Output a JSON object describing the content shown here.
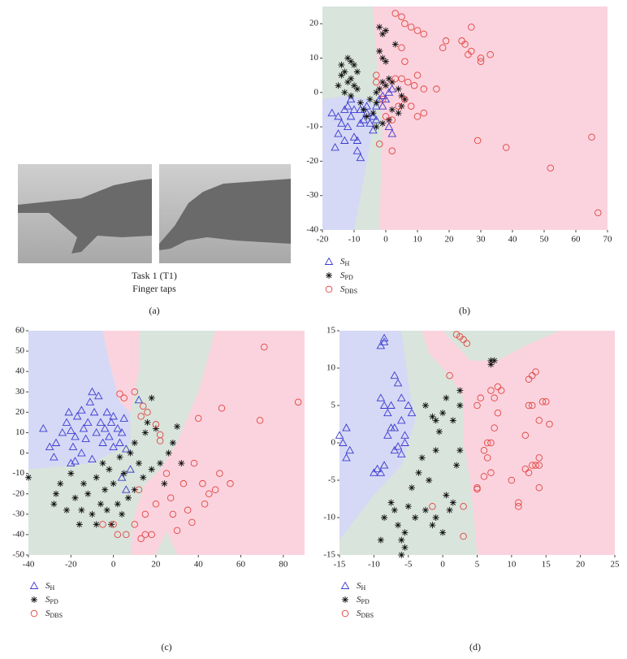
{
  "photo": {
    "caption": [
      "Task 1 (T1)",
      "Finger taps"
    ],
    "panel_label": "(a)"
  },
  "chart_data": [
    {
      "type": "scatter",
      "panel_label": "(b)",
      "xlim": [
        -20,
        70
      ],
      "xticks": [
        -20,
        -10,
        0,
        10,
        20,
        30,
        40,
        50,
        60,
        70
      ],
      "ylim": [
        -40,
        25
      ],
      "yticks": [
        -40,
        -30,
        -20,
        -10,
        0,
        10,
        20
      ],
      "series": [
        {
          "name": "SH",
          "color": "#3a3ad0",
          "marker": "triangle",
          "x": [
            -17,
            -15,
            -14,
            -15,
            -16,
            -13,
            -12,
            -11,
            -10,
            -9,
            -10,
            -8,
            -7,
            -6,
            -5,
            -4,
            -3,
            -2,
            -1,
            0,
            1,
            2,
            -12,
            -13,
            -8,
            -6,
            -11,
            -9,
            -8,
            -4,
            -3,
            -1,
            1,
            2
          ],
          "values": [
            -6,
            -7,
            -9,
            -12,
            -16,
            -14,
            -10,
            -7,
            -5,
            -14,
            -13,
            -9,
            -8,
            -6,
            -9,
            -7,
            -4,
            -2,
            -1,
            -2,
            0,
            1,
            -4,
            -5,
            -5,
            -4,
            -2,
            -17,
            -19,
            -11,
            -8,
            -4,
            -10,
            -12
          ]
        },
        {
          "name": "SPD",
          "color": "#111111",
          "marker": "asterisk",
          "x": [
            -12,
            -11,
            -10,
            -13,
            -14,
            -11,
            -12,
            -10,
            -9,
            -13,
            -11,
            -8,
            -7,
            -6,
            -4,
            -3,
            -2,
            -1,
            0,
            1,
            2,
            3,
            -2,
            -1,
            0,
            -2,
            -1,
            0,
            4,
            5,
            5,
            4,
            6,
            -5,
            -3,
            -14,
            -15,
            -9,
            -3,
            -1,
            1,
            2
          ],
          "values": [
            10,
            9,
            8,
            6,
            5,
            4,
            3,
            2,
            1,
            0,
            -1,
            -3,
            -5,
            -7,
            -6,
            -3,
            1,
            3,
            2,
            4,
            3,
            14,
            19,
            17,
            18,
            12,
            10,
            9,
            1,
            -1,
            -4,
            -6,
            -2,
            -2,
            0,
            8,
            2,
            6,
            -10,
            -9,
            -8,
            -5
          ]
        },
        {
          "name": "SDBS",
          "color": "#e0453e",
          "marker": "circle",
          "x": [
            3,
            5,
            6,
            8,
            10,
            12,
            18,
            19,
            24,
            25,
            27,
            26,
            27,
            30,
            30,
            33,
            29,
            38,
            52,
            65,
            67,
            -2,
            2,
            3,
            5,
            7,
            9,
            10,
            12,
            12,
            10,
            16,
            6,
            4,
            0,
            -1,
            2,
            6,
            5,
            -3,
            -3,
            8
          ],
          "values": [
            23,
            22,
            20,
            19,
            18,
            17,
            13,
            15,
            15,
            14,
            12,
            11,
            19,
            10,
            9,
            11,
            -14,
            -16,
            -22,
            -13,
            -35,
            -15,
            -17,
            4,
            4,
            3,
            2,
            5,
            1,
            -6,
            -7,
            1,
            -2,
            -4,
            -7,
            -2,
            -8,
            9,
            13,
            5,
            3,
            -4
          ]
        }
      ]
    },
    {
      "type": "scatter",
      "panel_label": "(c)",
      "xlim": [
        -40,
        90
      ],
      "xticks": [
        -40,
        -20,
        0,
        20,
        40,
        60,
        80
      ],
      "ylim": [
        -50,
        60
      ],
      "yticks": [
        -50,
        -40,
        -30,
        -20,
        -10,
        0,
        10,
        20,
        30,
        40,
        50,
        60
      ],
      "series": [
        {
          "name": "SH",
          "color": "#3a3ad0",
          "marker": "triangle",
          "x": [
            -33,
            -30,
            -28,
            -27,
            -24,
            -22,
            -21,
            -20,
            -19,
            -18,
            -17,
            -15,
            -14,
            -13,
            -12,
            -11,
            -10,
            -9,
            -8,
            -7,
            -6,
            -5,
            -4,
            -3,
            -2,
            -1,
            0,
            2,
            3,
            4,
            5,
            6,
            8,
            -20,
            -18,
            -15,
            -10,
            0,
            4,
            6,
            12
          ],
          "values": [
            12,
            3,
            -2,
            5,
            10,
            15,
            20,
            11,
            3,
            8,
            18,
            21,
            12,
            7,
            15,
            25,
            30,
            20,
            10,
            28,
            15,
            5,
            12,
            20,
            8,
            15,
            18,
            12,
            5,
            10,
            17,
            2,
            -8,
            -5,
            -4,
            0,
            -3,
            3,
            -12,
            -18,
            26
          ]
        },
        {
          "name": "SPD",
          "color": "#111111",
          "marker": "asterisk",
          "x": [
            -40,
            -28,
            -27,
            -25,
            -22,
            -20,
            -18,
            -16,
            -14,
            -12,
            -10,
            -8,
            -6,
            -5,
            -4,
            -2,
            0,
            2,
            3,
            5,
            7,
            8,
            10,
            12,
            14,
            15,
            16,
            18,
            20,
            22,
            24,
            26,
            28,
            30,
            32,
            -3,
            -1,
            4,
            10,
            -15,
            -8,
            18
          ],
          "values": [
            -12,
            -25,
            -20,
            -15,
            -28,
            -10,
            -22,
            -35,
            -15,
            -20,
            -30,
            -12,
            -25,
            -5,
            -18,
            -8,
            -15,
            -25,
            -2,
            -10,
            -22,
            0,
            5,
            -5,
            -12,
            10,
            15,
            27,
            12,
            -5,
            -15,
            0,
            5,
            13,
            -5,
            -28,
            -35,
            -30,
            -18,
            -28,
            -35,
            -8
          ]
        },
        {
          "name": "SDBS",
          "color": "#e0453e",
          "marker": "circle",
          "x": [
            3,
            5,
            10,
            13,
            14,
            16,
            20,
            22,
            22,
            25,
            27,
            28,
            30,
            33,
            35,
            37,
            38,
            40,
            42,
            43,
            45,
            48,
            50,
            51,
            55,
            69,
            71,
            87,
            0,
            2,
            6,
            -5,
            10,
            13,
            15,
            18,
            20,
            12,
            15
          ],
          "values": [
            29,
            27,
            30,
            18,
            23,
            20,
            14,
            9,
            6,
            -10,
            -22,
            -30,
            -38,
            -15,
            -28,
            -34,
            -5,
            17,
            -15,
            -25,
            -20,
            -18,
            -10,
            22,
            -15,
            16,
            52,
            25,
            -35,
            -40,
            -40,
            -35,
            -35,
            -42,
            -40,
            -40,
            -25,
            -18,
            -30
          ]
        }
      ]
    },
    {
      "type": "scatter",
      "panel_label": "(d)",
      "xlim": [
        -15,
        25
      ],
      "xticks": [
        -15,
        -10,
        -5,
        0,
        5,
        10,
        15,
        20,
        25
      ],
      "ylim": [
        -15,
        15
      ],
      "yticks": [
        -15,
        -10,
        -5,
        0,
        5,
        10,
        15
      ],
      "series": [
        {
          "name": "SH",
          "color": "#3a3ad0",
          "marker": "triangle",
          "x": [
            -15,
            -14.5,
            -14,
            -14,
            -13.5,
            -10,
            -9.5,
            -9,
            -9,
            -8.5,
            -8.5,
            -8.5,
            -9,
            -8,
            -7.5,
            -7,
            -7,
            -6.5,
            -6,
            -6,
            -5.5,
            -6.5,
            -7.5,
            -5,
            -4.5,
            -5.5,
            -8,
            -7,
            -6,
            -8.5
          ],
          "values": [
            1,
            0,
            -2,
            2,
            -1,
            -4,
            -3.5,
            -4,
            13,
            14,
            13.5,
            5,
            6,
            4,
            2,
            -1,
            9,
            8,
            6,
            3,
            1,
            -0.5,
            5,
            5,
            4,
            0,
            1,
            2,
            -1.5,
            -3
          ]
        },
        {
          "name": "SPD",
          "color": "#111111",
          "marker": "asterisk",
          "x": [
            -9,
            -8.5,
            -7.5,
            -7,
            -6.5,
            -6,
            -5.5,
            -5,
            -4.5,
            -4,
            -3,
            -2.5,
            -1.5,
            -1,
            -0.5,
            0,
            0.5,
            1,
            1.5,
            2,
            2.5,
            2.5,
            7,
            7.5,
            7,
            -1,
            -1.5,
            0,
            -2,
            -3.5,
            -2.5,
            -5.5,
            -6,
            1.5,
            2.5,
            -1,
            0.5
          ],
          "values": [
            -13,
            -10,
            -8,
            -9,
            -11,
            -13,
            -12,
            -8.5,
            -6,
            -10,
            -2,
            5,
            3.5,
            -1,
            1.5,
            4,
            6,
            -9,
            -8,
            -3,
            5,
            7,
            11,
            11,
            10.5,
            -10,
            -11,
            -12,
            -5,
            -4,
            -9,
            -14,
            -15,
            3,
            -1,
            3,
            -7
          ]
        },
        {
          "name": "SDBS",
          "color": "#e0453e",
          "marker": "circle",
          "x": [
            2,
            2.5,
            3,
            3.5,
            1,
            5,
            5.5,
            6,
            6.5,
            6.5,
            7,
            7,
            7.5,
            8,
            8.5,
            8,
            7.5,
            7,
            6,
            5,
            10,
            11,
            11,
            12,
            12,
            12.5,
            12.5,
            13,
            13.5,
            13,
            14,
            14,
            14.5,
            15,
            15.5,
            14,
            14,
            13.5,
            13,
            12.5,
            3,
            3,
            -1.5,
            5
          ],
          "values": [
            14.5,
            14.2,
            13.8,
            13.3,
            9,
            5,
            6,
            -1,
            -2,
            0,
            0,
            7,
            6,
            7.5,
            7,
            4,
            2,
            -4,
            -4.5,
            -6,
            -5,
            -8.5,
            -8,
            -3.5,
            1,
            5,
            8.5,
            9,
            9.5,
            5,
            3,
            -2,
            5.5,
            5.5,
            2.5,
            -3,
            -6,
            -3,
            -3,
            -4,
            -12.5,
            -8.5,
            -8.5,
            -6.2
          ]
        }
      ]
    }
  ]
}
